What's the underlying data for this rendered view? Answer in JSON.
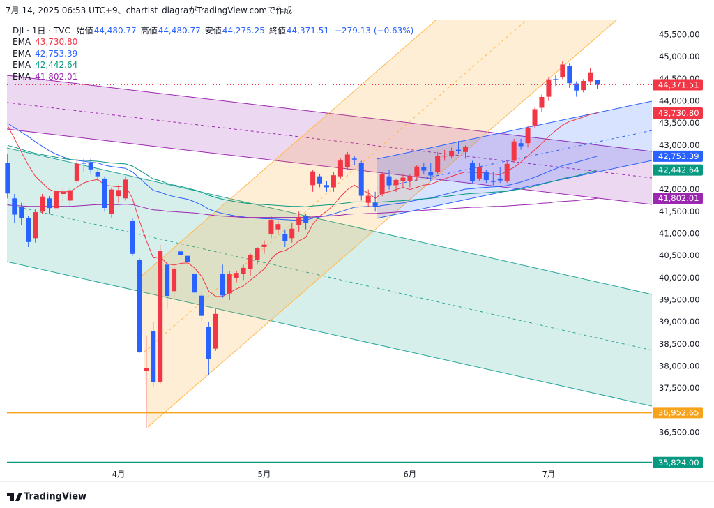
{
  "header": {
    "caption": "7月 14, 2025 06:53 UTC+9、chartist_diagraがTradingView.comで作成",
    "footer": "TradingView"
  },
  "legend": {
    "symbol": "DJI · 1日 · TVC",
    "items": [
      {
        "label": "始値",
        "value": "44,480.77"
      },
      {
        "label": "高値",
        "value": "44,480.77"
      },
      {
        "label": "安値",
        "value": "44,275.25"
      },
      {
        "label": "終値",
        "value": "44,371.51"
      }
    ],
    "change": "−279.13 (−0.63%)"
  },
  "chart_data": {
    "type": "candlestick",
    "categories": [
      null,
      null,
      null,
      null,
      null,
      null,
      null,
      null,
      null,
      null,
      null,
      null,
      null,
      null,
      null,
      null,
      "4月",
      null,
      null,
      null,
      null,
      null,
      null,
      null,
      null,
      null,
      null,
      null,
      null,
      null,
      null,
      null,
      null,
      null,
      null,
      null,
      null,
      "5月",
      null,
      null,
      null,
      null,
      null,
      null,
      null,
      null,
      null,
      null,
      null,
      null,
      null,
      null,
      null,
      null,
      null,
      null,
      null,
      null,
      "6月",
      null,
      null,
      null,
      null,
      null,
      null,
      null,
      null,
      null,
      null,
      null,
      null,
      null,
      null,
      null,
      null,
      null,
      null,
      null,
      "7月",
      null,
      null,
      null,
      null,
      null,
      null,
      null
    ],
    "open": [
      42600,
      41800,
      41600,
      41350,
      40900,
      41500,
      41800,
      41580,
      41900,
      41750,
      42200,
      42600,
      42600,
      42400,
      42250,
      41450,
      41850,
      41800,
      41300,
      40400,
      37900,
      38800,
      37650,
      40300,
      39700,
      40600,
      40500,
      40100,
      39600,
      38900,
      38400,
      40100,
      39650,
      40000,
      40100,
      40200,
      40400,
      40700,
      41000,
      41100,
      41000,
      40900,
      41200,
      41400,
      42100,
      42300,
      42100,
      42050,
      42300,
      42500,
      42700,
      42600,
      41700,
      41700,
      41900,
      42300,
      42100,
      42200,
      42200,
      42300,
      42500,
      42400,
      42400,
      42750,
      42750,
      42900,
      42850,
      42600,
      42250,
      42400,
      42200,
      42250,
      42200,
      42650,
      43050,
      43050,
      43450,
      43850,
      44100,
      44500,
      44550,
      44800,
      44400,
      44250,
      44450,
      44480.77
    ],
    "high": [
      42800,
      41900,
      41700,
      41400,
      41550,
      41900,
      41850,
      42100,
      42050,
      42050,
      42700,
      42700,
      42700,
      42450,
      42300,
      42050,
      42100,
      42300,
      41350,
      40450,
      38700,
      39000,
      40750,
      40350,
      40250,
      40900,
      40600,
      40150,
      39700,
      39000,
      39300,
      40300,
      40150,
      40150,
      40300,
      40550,
      40700,
      40850,
      41400,
      41300,
      41100,
      41250,
      41500,
      41450,
      42450,
      42350,
      42200,
      42400,
      42700,
      42850,
      42750,
      42650,
      42000,
      41950,
      42400,
      42450,
      42250,
      42350,
      42350,
      42550,
      42600,
      42600,
      42850,
      42900,
      42950,
      43100,
      43000,
      42650,
      42600,
      42450,
      42400,
      42500,
      42650,
      43150,
      43150,
      43450,
      43850,
      44150,
      44550,
      44600,
      44900,
      44850,
      44450,
      44500,
      44750,
      44480.77
    ],
    "low": [
      41800,
      41250,
      41200,
      40700,
      40800,
      41450,
      41450,
      41500,
      41700,
      41600,
      42150,
      42400,
      42350,
      42200,
      41500,
      41350,
      41700,
      41750,
      40500,
      38300,
      36611,
      37550,
      37600,
      39300,
      39500,
      40400,
      40250,
      39550,
      39000,
      37800,
      38350,
      39550,
      39500,
      39900,
      39950,
      40050,
      40300,
      40550,
      40900,
      41000,
      40700,
      40800,
      41050,
      41100,
      41950,
      42050,
      41950,
      41950,
      42250,
      42450,
      42550,
      41750,
      41600,
      41500,
      41850,
      42000,
      41950,
      42050,
      42050,
      42200,
      42350,
      42200,
      42350,
      42650,
      42700,
      42800,
      42700,
      42150,
      42200,
      42150,
      42100,
      42150,
      42150,
      42600,
      42900,
      42950,
      43400,
      43750,
      44000,
      44350,
      44500,
      44300,
      44100,
      44200,
      44400,
      44275.25
    ],
    "close": [
      41911,
      41433,
      41350,
      40813,
      41488,
      41841,
      41581,
      41964,
      41953,
      41985,
      42583,
      42587,
      42455,
      42300,
      41584,
      42001,
      41989,
      42225,
      40545,
      38315,
      37966,
      37645,
      40608,
      39593,
      40212,
      40524,
      40368,
      39669,
      39142,
      38170,
      39187,
      39606,
      40093,
      40113,
      40227,
      40527,
      40669,
      40752,
      41317,
      41218,
      40829,
      41114,
      41368,
      41249,
      42410,
      42140,
      42051,
      42323,
      42655,
      42792,
      42677,
      41860,
      41859,
      41603,
      42343,
      42098,
      42216,
      42270,
      42305,
      42520,
      42428,
      42320,
      42763,
      42762,
      42867,
      42866,
      42968,
      42198,
      42515,
      42215,
      42172,
      42207,
      42582,
      43089,
      42982,
      43386,
      43819,
      44095,
      44495,
      44484,
      44829,
      44406,
      44241,
      44458,
      44651,
      44371.51
    ],
    "up_color": "#f23645",
    "down_color": "#2962ff",
    "series": [
      {
        "name": "EMA",
        "color": "#f23645",
        "last_label": "43,730.80",
        "values": [
          43450,
          43150,
          42850,
          42550,
          42300,
          42150,
          42000,
          41950,
          41950,
          41950,
          42050,
          42150,
          42200,
          42230,
          42100,
          42080,
          42060,
          42090,
          41800,
          41300,
          40850,
          40450,
          40480,
          40320,
          40290,
          40330,
          40340,
          40220,
          40030,
          39700,
          39580,
          39580,
          39670,
          39750,
          39820,
          39950,
          40080,
          40200,
          40430,
          40580,
          40620,
          40710,
          40840,
          40920,
          41220,
          41400,
          41510,
          41650,
          41840,
          42000,
          42100,
          42000,
          41920,
          41800,
          41920,
          41950,
          42000,
          42050,
          42000,
          42050,
          42100,
          42120,
          42180,
          42240,
          42300,
          42350,
          42400,
          42380,
          42390,
          42370,
          42350,
          42330,
          42420,
          42500,
          42620,
          42760,
          42900,
          43040,
          43200,
          43330,
          43460,
          43540,
          43590,
          43640,
          43700,
          43730.8
        ]
      },
      {
        "name": "EMA",
        "color": "#2962ff",
        "last_label": "42,753.39",
        "values": [
          43500,
          43400,
          43300,
          43200,
          43080,
          42980,
          42880,
          42800,
          42740,
          42680,
          42660,
          42640,
          42620,
          42600,
          42550,
          42520,
          42500,
          42480,
          42400,
          42260,
          42120,
          41980,
          41940,
          41880,
          41840,
          41810,
          41780,
          41720,
          41650,
          41560,
          41500,
          41460,
          41430,
          41400,
          41380,
          41360,
          41350,
          41340,
          41340,
          41330,
          41320,
          41310,
          41310,
          41310,
          41350,
          41380,
          41410,
          41450,
          41500,
          41550,
          41600,
          41610,
          41620,
          41610,
          41640,
          41660,
          41680,
          41700,
          41730,
          41760,
          41790,
          41810,
          41850,
          41890,
          41930,
          41970,
          42010,
          42020,
          42040,
          42050,
          42060,
          42070,
          42090,
          42130,
          42170,
          42220,
          42280,
          42340,
          42410,
          42470,
          42540,
          42580,
          42620,
          42660,
          42710,
          42753.39
        ]
      },
      {
        "name": "EMA",
        "color": "#089981",
        "last_label": "42,442.64",
        "values": [
          43000,
          42960,
          42910,
          42860,
          42820,
          42790,
          42760,
          42730,
          42700,
          42680,
          42670,
          42660,
          42650,
          42640,
          42620,
          42600,
          42590,
          42580,
          42530,
          42440,
          42340,
          42240,
          42200,
          42140,
          42100,
          42070,
          42030,
          41990,
          41940,
          41870,
          41820,
          41780,
          41750,
          41720,
          41700,
          41680,
          41670,
          41660,
          41650,
          41640,
          41630,
          41620,
          41620,
          41610,
          41630,
          41640,
          41650,
          41660,
          41680,
          41700,
          41720,
          41720,
          41720,
          41710,
          41720,
          41730,
          41740,
          41750,
          41760,
          41780,
          41790,
          41800,
          41820,
          41840,
          41860,
          41880,
          41900,
          41910,
          41920,
          41930,
          41940,
          41950,
          41960,
          41990,
          42010,
          42040,
          42080,
          42120,
          42160,
          42200,
          42250,
          42280,
          42310,
          42350,
          42390,
          42442.64
        ]
      },
      {
        "name": "EMA",
        "color": "#9c27b0",
        "last_label": "41,802.01",
        "values": [
          41650,
          41640,
          41630,
          41620,
          41620,
          41620,
          41620,
          41620,
          41620,
          41620,
          41630,
          41640,
          41650,
          41660,
          41660,
          41660,
          41660,
          41670,
          41660,
          41620,
          41580,
          41540,
          41530,
          41510,
          41500,
          41490,
          41480,
          41470,
          41450,
          41430,
          41410,
          41400,
          41390,
          41380,
          41370,
          41370,
          41370,
          41370,
          41370,
          41370,
          41370,
          41370,
          41370,
          41370,
          41380,
          41390,
          41400,
          41410,
          41420,
          41440,
          41450,
          41450,
          41460,
          41460,
          41470,
          41480,
          41490,
          41500,
          41510,
          41520,
          41530,
          41540,
          41550,
          41560,
          41570,
          41580,
          41590,
          41600,
          41600,
          41610,
          41620,
          41620,
          41630,
          41640,
          41650,
          41660,
          41670,
          41690,
          41700,
          41720,
          41730,
          41740,
          41750,
          41770,
          41780,
          41802.01
        ]
      }
    ],
    "price_lines": [
      {
        "value": 44371.51,
        "label": "44,371.51",
        "color": "#f23645",
        "style": "dotted"
      },
      {
        "value": 36952.65,
        "label": "36,952.65",
        "color": "#f7a21b",
        "style": "solid"
      },
      {
        "value": 35824.0,
        "label": "35,824.00",
        "color": "#089981",
        "style": "solid"
      }
    ],
    "ylim": [
      35742,
      45847
    ],
    "yticks": [
      {
        "value": 45500,
        "label": "45,500.00"
      },
      {
        "value": 45000,
        "label": "45,000.00"
      },
      {
        "value": 44500,
        "label": "44,500.00"
      },
      {
        "value": 44000,
        "label": "44,000.00"
      },
      {
        "value": 43500,
        "label": "43,500.00"
      },
      {
        "value": 43000,
        "label": "43,000.00"
      },
      {
        "value": 42000,
        "label": "42,000.00"
      },
      {
        "value": 41500,
        "label": "41,500.00"
      },
      {
        "value": 41000,
        "label": "41,000.00"
      },
      {
        "value": 40500,
        "label": "40,500.00"
      },
      {
        "value": 40000,
        "label": "40,000.00"
      },
      {
        "value": 39500,
        "label": "39,500.00"
      },
      {
        "value": 39000,
        "label": "39,000.00"
      },
      {
        "value": 38500,
        "label": "38,500.00"
      },
      {
        "value": 38000,
        "label": "38,000.00"
      },
      {
        "value": 37500,
        "label": "37,500.00"
      },
      {
        "value": 36500,
        "label": "36,500.00"
      }
    ],
    "grid": false
  }
}
